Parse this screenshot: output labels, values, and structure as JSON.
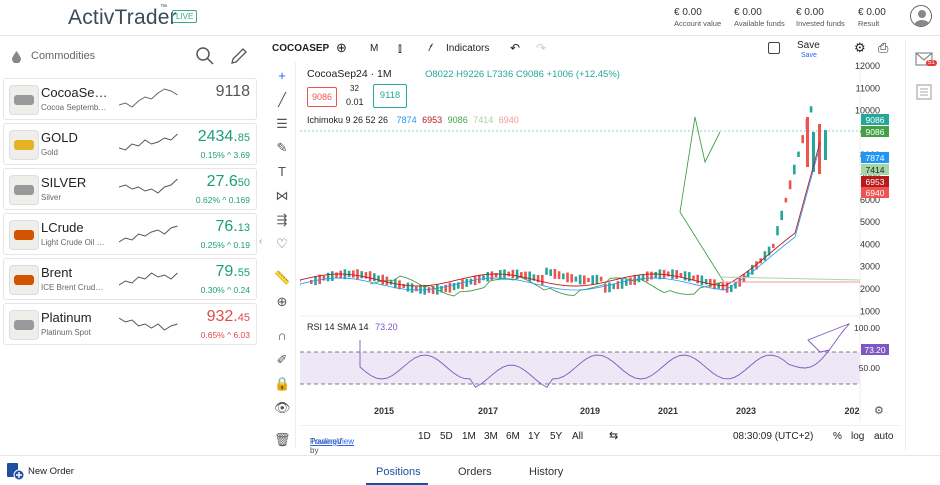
{
  "app": {
    "logo": "ActivTrader",
    "trademark": "™",
    "live": "LIVE"
  },
  "account": [
    {
      "value": "€ 0.00",
      "label": "Account value"
    },
    {
      "value": "€ 0.00",
      "label": "Available funds"
    },
    {
      "value": "€ 0.00",
      "label": "Invested funds"
    },
    {
      "value": "€ 0.00",
      "label": "Result"
    }
  ],
  "watchlist": {
    "title": "Commodities",
    "items": [
      {
        "name": "CocoaSe…",
        "sub": "Cocoa Septemb…",
        "price": "9118",
        "price_small": "",
        "change": "",
        "color": "#555"
      },
      {
        "name": "GOLD",
        "sub": "Gold",
        "price": "2434.",
        "price_small": "85",
        "change": "0.15% ^ 3.69",
        "color": "#1a9e7a"
      },
      {
        "name": "SILVER",
        "sub": "Silver",
        "price": "27.6",
        "price_small": "50",
        "change": "0.62% ^ 0.169",
        "color": "#1a9e7a"
      },
      {
        "name": "LCrude",
        "sub": "Light Crude Oil …",
        "price": "76.",
        "price_small": "13",
        "change": "0.25% ^ 0.19",
        "color": "#1a9e7a"
      },
      {
        "name": "Brent",
        "sub": "ICE Brent Crud…",
        "price": "79.",
        "price_small": "55",
        "change": "0.30% ^ 0.24",
        "color": "#1a9e7a"
      },
      {
        "name": "Platinum",
        "sub": "Platinum Spot",
        "price": "932.",
        "price_small": "45",
        "change": "0.65% ^ 6.03",
        "color": "#e24b4b"
      }
    ]
  },
  "toolbar": {
    "symbol": "COCOASEP",
    "interval": "M",
    "indicators": "Indicators",
    "save": "Save",
    "save_sub": "Save"
  },
  "legend": {
    "title": "CocoaSep24 · 1M",
    "o": "O8022",
    "h": "H9226",
    "l": "L7336",
    "c": "C9086",
    "chg": "+1006 (+12.45%)",
    "bid": "9086",
    "spread_top": "32",
    "spread": "0.01",
    "ask": "9118",
    "ichimoku": "Ichimoku 9 26 52 26",
    "ich_vals": [
      "7874",
      "6953",
      "9086",
      "7414",
      "6940"
    ],
    "rsi": "RSI 14 SMA 14",
    "rsi_val": "73.20"
  },
  "colors": {
    "up": "#26a69a",
    "down": "#ef5350",
    "accent": "#2962ff"
  },
  "chart_data": {
    "type": "line",
    "x_ticks": [
      "2015",
      "2017",
      "2019",
      "2021",
      "2023",
      "202"
    ],
    "y_ticks": [
      "12000",
      "11000",
      "10000",
      "9000",
      "8000",
      "7000",
      "6000",
      "5000",
      "4000",
      "3000",
      "2000",
      "1000"
    ],
    "price_tags": [
      "9086",
      "9086",
      "7874",
      "7414",
      "6953",
      "6940"
    ],
    "rsi_ticks": [
      "100.00",
      "73.20",
      "50.00"
    ]
  },
  "bottom": {
    "powered": "Powered by ",
    "tv": "TradingView",
    "ranges": [
      "1D",
      "5D",
      "1M",
      "3M",
      "6M",
      "1Y",
      "5Y",
      "All"
    ],
    "time": "08:30:09 (UTC+2)",
    "pct": "%",
    "log": "log",
    "auto": "auto"
  },
  "footer": {
    "new_order": "New Order",
    "tabs": [
      "Positions",
      "Orders",
      "History"
    ]
  },
  "notif": "51"
}
